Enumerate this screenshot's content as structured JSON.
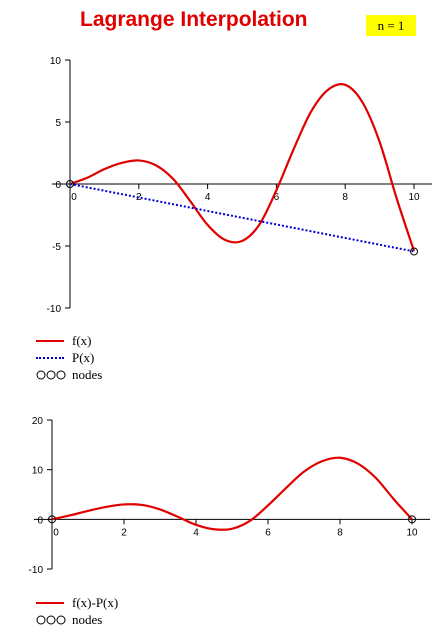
{
  "title": "Lagrange Interpolation",
  "badge": "n = 1",
  "colors": {
    "f": "#e00000",
    "p": "#0000d0",
    "title": "#e00000",
    "badge": "#ffff00"
  },
  "legend_top": [
    {
      "label": "f(x)",
      "style": "solid"
    },
    {
      "label": "P(x)",
      "style": "dotted"
    },
    {
      "label": "nodes",
      "style": "nodes"
    }
  ],
  "legend_bottom": [
    {
      "label": "f(x)-P(x)",
      "style": "solid"
    },
    {
      "label": "nodes",
      "style": "nodes"
    }
  ],
  "chart_data": [
    {
      "type": "line",
      "xlim": [
        0,
        10
      ],
      "ylim": [
        -10,
        10
      ],
      "x_ticks": [
        0,
        2,
        4,
        6,
        8,
        10
      ],
      "y_ticks": [
        -10,
        -5,
        0,
        5,
        10
      ],
      "grid": false,
      "series": [
        {
          "name": "f(x)",
          "x": [
            0,
            0.5,
            1,
            1.5,
            2,
            2.5,
            3,
            3.5,
            4,
            4.5,
            5,
            5.5,
            6,
            6.5,
            7,
            7.5,
            8,
            8.5,
            9,
            9.5,
            10
          ],
          "y": [
            0,
            0.5,
            1.2,
            1.7,
            1.9,
            1.5,
            0.4,
            -1.4,
            -3.3,
            -4.5,
            -4.6,
            -3.3,
            -0.5,
            2.8,
            5.8,
            7.6,
            8.0,
            6.6,
            3.4,
            -1.2,
            -5.4
          ]
        },
        {
          "name": "P(x)",
          "x": [
            0,
            10
          ],
          "y": [
            0,
            -5.44
          ]
        },
        {
          "name": "nodes",
          "x": [
            0,
            10
          ],
          "y": [
            0,
            -5.44
          ]
        }
      ]
    },
    {
      "type": "line",
      "xlim": [
        0,
        10
      ],
      "ylim": [
        -10,
        20
      ],
      "x_ticks": [
        0,
        2,
        4,
        6,
        8,
        10
      ],
      "y_ticks": [
        -10,
        0,
        10,
        20
      ],
      "grid": false,
      "series": [
        {
          "name": "f(x)-P(x)",
          "x": [
            0,
            0.5,
            1,
            1.5,
            2,
            2.5,
            3,
            3.5,
            4,
            4.5,
            5,
            5.5,
            6,
            6.5,
            7,
            7.5,
            8,
            8.5,
            9,
            9.5,
            10
          ],
          "y": [
            0,
            0.8,
            1.7,
            2.5,
            3.0,
            2.9,
            2.0,
            0.5,
            -1.1,
            -2.0,
            -1.9,
            -0.3,
            2.8,
            6.3,
            9.6,
            11.7,
            12.4,
            11.2,
            8.3,
            4.0,
            0
          ]
        },
        {
          "name": "nodes",
          "x": [
            0,
            10
          ],
          "y": [
            0,
            0
          ]
        }
      ]
    }
  ]
}
